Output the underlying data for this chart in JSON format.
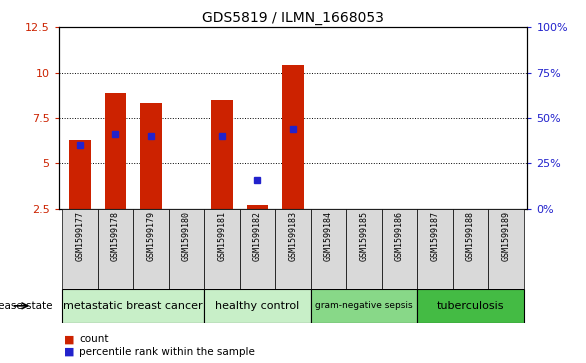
{
  "title": "GDS5819 / ILMN_1668053",
  "samples": [
    "GSM1599177",
    "GSM1599178",
    "GSM1599179",
    "GSM1599180",
    "GSM1599181",
    "GSM1599182",
    "GSM1599183",
    "GSM1599184",
    "GSM1599185",
    "GSM1599186",
    "GSM1599187",
    "GSM1599188",
    "GSM1599189"
  ],
  "count_values": [
    6.3,
    8.9,
    8.3,
    2.5,
    8.5,
    2.7,
    10.4,
    2.5,
    2.5,
    2.5,
    2.5,
    2.5,
    2.5
  ],
  "percentile_values": [
    6.0,
    6.6,
    6.5,
    null,
    6.5,
    4.1,
    6.9,
    null,
    null,
    null,
    null,
    null,
    null
  ],
  "y_min": 2.5,
  "y_max": 12.5,
  "y_ticks": [
    2.5,
    5.0,
    7.5,
    10.0,
    12.5
  ],
  "right_y_ticks": [
    0,
    25,
    50,
    75,
    100
  ],
  "disease_groups": [
    {
      "label": "metastatic breast cancer",
      "start": 0,
      "end": 4,
      "color": "#c8efc8"
    },
    {
      "label": "healthy control",
      "start": 4,
      "end": 7,
      "color": "#c8efc8"
    },
    {
      "label": "gram-negative sepsis",
      "start": 7,
      "end": 10,
      "color": "#88d888"
    },
    {
      "label": "tuberculosis",
      "start": 10,
      "end": 13,
      "color": "#44bb44"
    }
  ],
  "group_fontsizes": [
    8,
    8,
    6.5,
    8
  ],
  "bar_color": "#cc2200",
  "percentile_color": "#2222cc",
  "bar_bottom": 2.5,
  "left_axis_color": "#cc2200",
  "right_axis_color": "#2222cc",
  "legend_count_label": "count",
  "legend_percentile_label": "percentile rank within the sample",
  "disease_state_label": "disease state",
  "sample_box_color": "#d9d9d9",
  "title_fontsize": 10,
  "tick_fontsize": 8,
  "sample_fontsize": 6
}
